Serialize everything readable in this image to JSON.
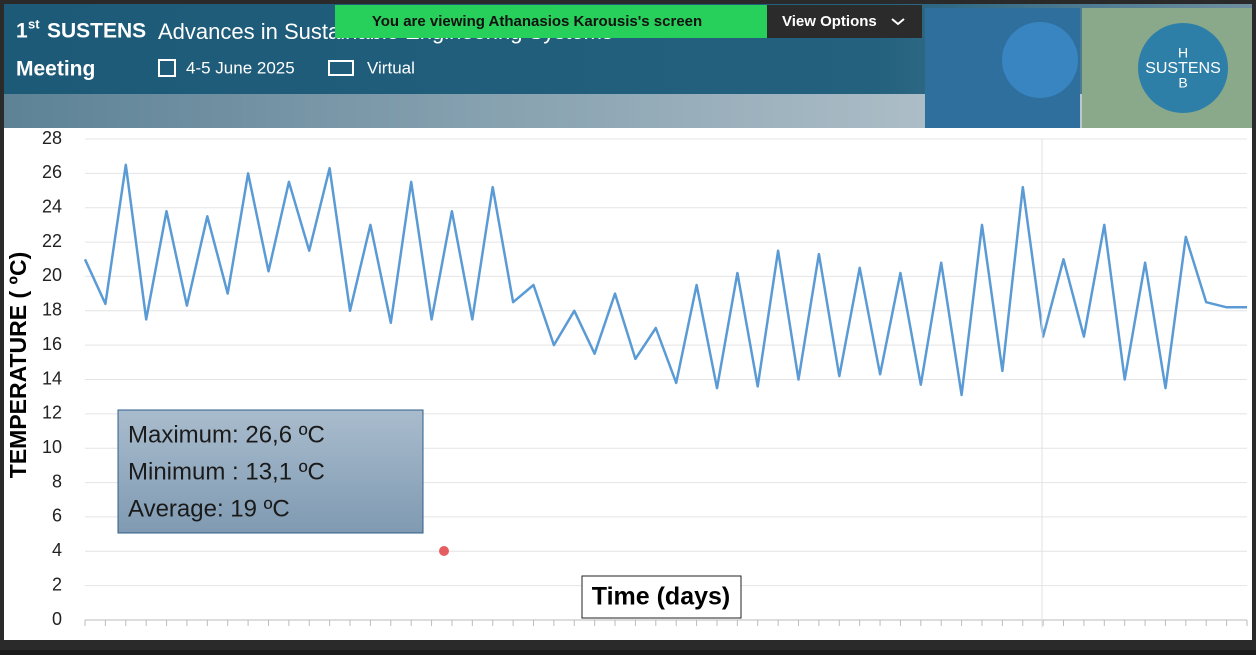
{
  "header": {
    "number": "1",
    "number_suffix": "st",
    "event": "SUSTENS",
    "title": "Advances in Sustainable Engineering Systems",
    "subtitle": "Meeting",
    "date": "4-5 June 2025",
    "mode": "Virtual",
    "logo": "SUSTENS"
  },
  "share_bar": {
    "message": "You are viewing  Athanasios Karousis's screen",
    "options": "View Options"
  },
  "chart_data": {
    "type": "line",
    "y_label": "TEMPERATURE ( ºC)",
    "x_label": "Time (days)",
    "annotations": [
      "Maximum: 26,6 ºC",
      "Minimum : 13,1 ºC",
      "Average: 19 ºC"
    ],
    "categories": [
      null,
      null,
      null,
      null,
      null,
      null,
      null,
      null,
      null,
      null,
      null,
      null,
      null,
      null,
      null,
      null,
      null,
      null,
      null,
      null,
      null,
      null,
      null,
      null,
      null,
      null,
      null,
      null,
      null,
      null,
      null,
      null,
      null,
      null,
      null,
      null,
      null,
      null,
      null,
      null,
      null,
      null,
      null,
      null,
      null,
      null,
      null,
      null,
      null,
      null,
      null,
      null,
      null,
      null,
      null,
      null,
      null,
      null
    ],
    "values": [
      21,
      18.4,
      26.5,
      17.5,
      23.8,
      18.3,
      23.5,
      19,
      26,
      20.3,
      25.5,
      21.5,
      26.3,
      18,
      23,
      17.3,
      25.5,
      17.5,
      23.8,
      17.5,
      25.2,
      18.5,
      19.5,
      16,
      18,
      15.5,
      19,
      15.2,
      17,
      13.8,
      19.5,
      13.5,
      20.2,
      13.6,
      21.5,
      14,
      21.3,
      14.2,
      20.5,
      14.3,
      20.2,
      13.7,
      20.8,
      13.1,
      23,
      14.5,
      25.2,
      16.5,
      21,
      16.5,
      23,
      14,
      20.8,
      13.5,
      22.3,
      18.5,
      18.2,
      18.2
    ],
    "color": "#5b9bd5",
    "ylim": [
      0,
      28
    ],
    "yticks": [
      0,
      2,
      4,
      6,
      8,
      10,
      12,
      14,
      16,
      18,
      20,
      22,
      24,
      26,
      28
    ],
    "grid": true
  }
}
